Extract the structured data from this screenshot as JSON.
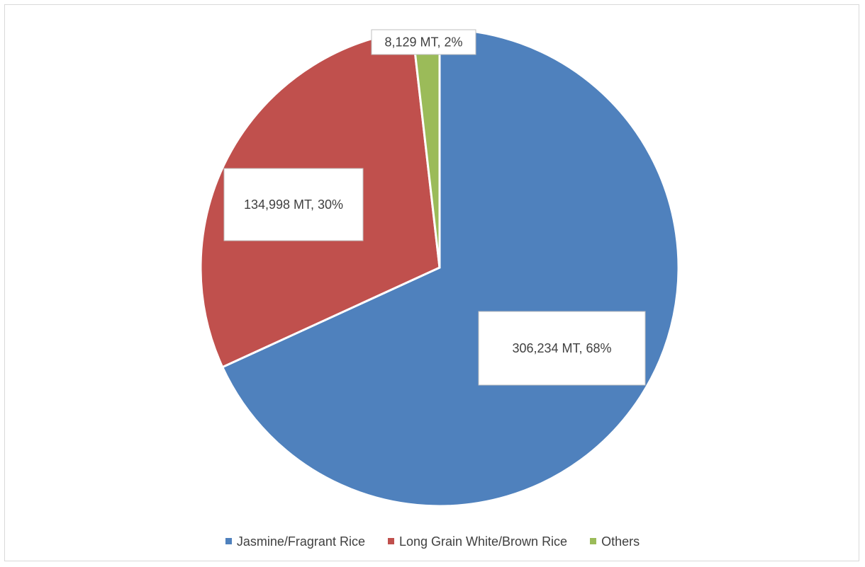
{
  "chart_data": {
    "type": "pie",
    "title": "",
    "categories": [
      "Jasmine/Fragrant Rice",
      "Long Grain White/Brown Rice",
      "Others"
    ],
    "values": [
      306234,
      134998,
      8129
    ],
    "percentages": [
      68,
      30,
      2
    ],
    "unit": "MT",
    "colors": [
      "#4f81bd",
      "#c0504d",
      "#9bbb59"
    ],
    "data_labels": [
      "306,234 MT, 68%",
      "134,998 MT, 30%",
      "8,129 MT, 2%"
    ],
    "legend_position": "bottom",
    "start_angle": "12 o'clock",
    "direction": "clockwise"
  }
}
